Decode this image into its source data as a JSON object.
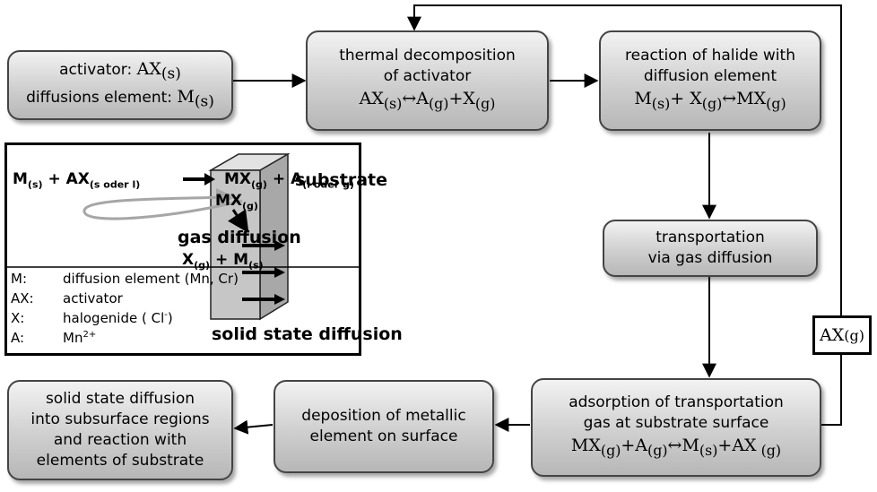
{
  "boxes": {
    "activator": {
      "line1_text": "activator: ",
      "line1_formula": "AX",
      "line1_sub": "(s)",
      "line2_text": "diffusions element: ",
      "line2_formula": "M",
      "line2_sub": "(s)"
    },
    "thermal": {
      "line1": "thermal decomposition",
      "line2": "of activator",
      "formula": {
        "a": "AX",
        "a_sub": "(s)",
        "arrow": "↔",
        "b": "A",
        "b_sub": "(g)",
        "plus": "+",
        "c": "X",
        "c_sub": "(g)"
      }
    },
    "halide": {
      "line1": "reaction of halide with",
      "line2": "diffusion element",
      "formula": {
        "a": "M",
        "a_sub": "(s)",
        "plus": "+ ",
        "b": "X",
        "b_sub": "(g)",
        "arrow": "↔",
        "c": "MX",
        "c_sub": "(g)"
      }
    },
    "transport": {
      "line1": "transportation",
      "line2": "via gas diffusion"
    },
    "adsorption": {
      "line1": "adsorption of transportation",
      "line2": "gas at substrate surface",
      "formula": {
        "a": "MX",
        "a_sub": "(g)",
        "plus1": "+",
        "b": "A",
        "b_sub": "(g)",
        "arrow": "↔",
        "c": "M",
        "c_sub": "(s)",
        "plus2": "+",
        "d": "AX",
        "d_sub": " (g)"
      }
    },
    "deposition": {
      "line1": "deposition of metallic",
      "line2": "element on surface"
    },
    "solid": {
      "line1": "solid state diffusion",
      "line2": "into subsurface regions",
      "line3": "and reaction with",
      "line4": "elements of substrate"
    }
  },
  "feedback": {
    "label": "AX",
    "label_sub": " (g)"
  },
  "inset": {
    "reaction": {
      "m": "M",
      "m_sub": "(s)",
      "plus1": " + ",
      "ax": "AX",
      "ax_sub": "(s oder l)",
      "mx": "MX",
      "mx_sub": "(g)",
      "plus2": " + ",
      "a": "A",
      "a_sub": "(l oder g)"
    },
    "substrate_label": "substrate",
    "gas_diffusion_label": "gas diffusion",
    "solid_state_label": "solid state diffusion",
    "mx_on_block": "MX",
    "mx_on_block_sub": "(g)",
    "xm_on_block": {
      "x": "X",
      "x_sub": "(g)",
      "plus": " + ",
      "m": "M",
      "m_sub": "(s)"
    },
    "legend": [
      {
        "key": "M:",
        "value": "diffusion element (Mn, Cr)"
      },
      {
        "key": "AX:",
        "value": "activator"
      },
      {
        "key": "X:",
        "value": "halogenide ( Cl",
        "sup": "-",
        "tail": ")"
      },
      {
        "key": "A:",
        "value": "Mn",
        "sup": "2+",
        "tail": ""
      }
    ],
    "colors": {
      "block_front": "#c6c6c6",
      "block_side": "#a8a8a8",
      "block_top": "#e2e2e2",
      "gas_arrow": "#a6a6a6"
    }
  }
}
